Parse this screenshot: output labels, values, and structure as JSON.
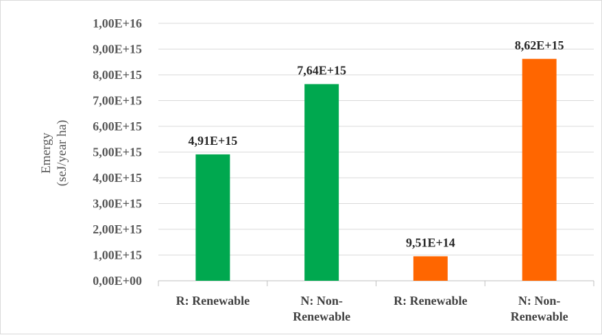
{
  "chart_data": {
    "type": "bar",
    "title": "",
    "xlabel": "",
    "ylabel_lines": [
      "Emergy",
      "(seJ/year ha)"
    ],
    "categories": [
      [
        "R: Renewable"
      ],
      [
        "N: Non-",
        "Renewable"
      ],
      [
        "R: Renewable"
      ],
      [
        "N: Non-",
        "Renewable"
      ]
    ],
    "values": [
      4910000000000000.0,
      7640000000000000.0,
      951000000000000.0,
      8620000000000000.0
    ],
    "data_labels": [
      "4,91E+15",
      "7,64E+15",
      "9,51E+14",
      "8,62E+15"
    ],
    "bar_colors": [
      "#00a84f",
      "#00a84f",
      "#ff6600",
      "#ff6600"
    ],
    "ylim": [
      0,
      1e+16
    ],
    "yticks": [
      0,
      1000000000000000.0,
      2000000000000000.0,
      3000000000000000.0,
      4000000000000000.0,
      5000000000000000.0,
      6000000000000000.0,
      7000000000000000.0,
      8000000000000000.0,
      9000000000000000.0,
      1e+16
    ],
    "ytick_labels": [
      "0,00E+00",
      "1,00E+15",
      "2,00E+15",
      "3,00E+15",
      "4,00E+15",
      "5,00E+15",
      "6,00E+15",
      "7,00E+15",
      "8,00E+15",
      "9,00E+15",
      "1,00E+16"
    ],
    "grid": true,
    "gridline_color": "#d9d9d9",
    "legend": "none"
  }
}
